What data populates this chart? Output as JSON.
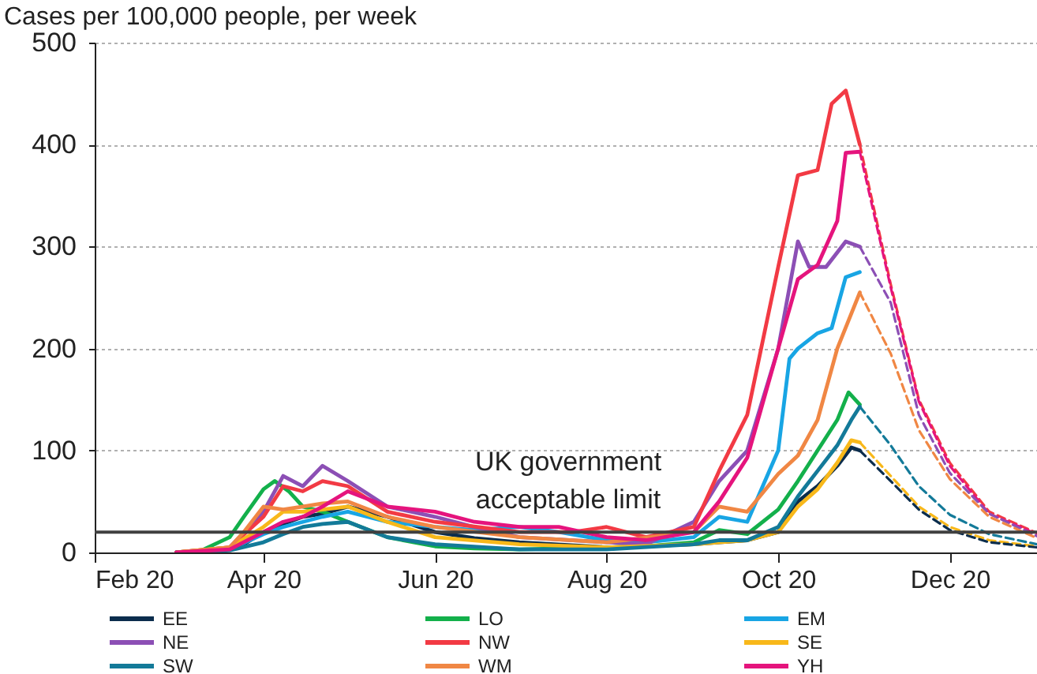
{
  "chart_data": {
    "type": "line",
    "ylabel": "Cases per 100,000 people, per week",
    "xlim": [
      "2020-02-01",
      "2021-01-01"
    ],
    "xticks": [
      {
        "value": "2020-02-01",
        "label": "Feb 20"
      },
      {
        "value": "2020-04-01",
        "label": "Apr 20"
      },
      {
        "value": "2020-06-01",
        "label": "Jun 20"
      },
      {
        "value": "2020-08-01",
        "label": "Aug 20"
      },
      {
        "value": "2020-10-01",
        "label": "Oct 20"
      },
      {
        "value": "2020-12-01",
        "label": "Dec 20"
      }
    ],
    "ylim": [
      0,
      500
    ],
    "yticks": [
      0,
      100,
      200,
      300,
      400,
      500
    ],
    "grid": "y",
    "legend": "bottom",
    "ref_lines": [
      {
        "axis": "y",
        "value": 20,
        "label": "UK government acceptable limit",
        "color": "#404040"
      }
    ],
    "series": [
      {
        "name": "EE",
        "color": "#0b2d4d",
        "x": [
          "2020-03-01",
          "2020-03-15",
          "2020-03-25",
          "2020-04-01",
          "2020-04-08",
          "2020-04-15",
          "2020-04-22",
          "2020-05-01",
          "2020-05-15",
          "2020-06-01",
          "2020-06-15",
          "2020-07-01",
          "2020-08-01",
          "2020-09-01",
          "2020-09-10",
          "2020-09-20",
          "2020-10-01",
          "2020-10-08",
          "2020-10-15",
          "2020-10-22",
          "2020-10-27",
          "2020-10-30"
        ],
        "values": [
          0,
          1,
          8,
          20,
          28,
          35,
          38,
          45,
          35,
          20,
          14,
          10,
          5,
          8,
          10,
          12,
          20,
          50,
          65,
          85,
          103,
          100
        ]
      },
      {
        "name": "LO",
        "color": "#13b04b",
        "x": [
          "2020-03-01",
          "2020-03-10",
          "2020-03-20",
          "2020-03-25",
          "2020-04-01",
          "2020-04-05",
          "2020-04-10",
          "2020-04-15",
          "2020-04-22",
          "2020-05-01",
          "2020-05-15",
          "2020-06-01",
          "2020-06-15",
          "2020-07-01",
          "2020-08-01",
          "2020-08-15",
          "2020-09-01",
          "2020-09-10",
          "2020-09-20",
          "2020-10-01",
          "2020-10-08",
          "2020-10-15",
          "2020-10-22",
          "2020-10-26",
          "2020-10-30"
        ],
        "values": [
          0,
          2,
          15,
          35,
          62,
          70,
          60,
          45,
          40,
          30,
          15,
          6,
          4,
          3,
          5,
          6,
          10,
          22,
          18,
          42,
          70,
          100,
          130,
          157,
          145
        ]
      },
      {
        "name": "EM",
        "color": "#18a5e4",
        "x": [
          "2020-03-01",
          "2020-03-20",
          "2020-04-01",
          "2020-04-08",
          "2020-04-15",
          "2020-04-22",
          "2020-05-01",
          "2020-05-15",
          "2020-06-01",
          "2020-06-15",
          "2020-07-01",
          "2020-07-15",
          "2020-08-01",
          "2020-08-15",
          "2020-09-01",
          "2020-09-10",
          "2020-09-20",
          "2020-10-01",
          "2020-10-05",
          "2020-10-08",
          "2020-10-15",
          "2020-10-20",
          "2020-10-25",
          "2020-10-30"
        ],
        "values": [
          0,
          3,
          18,
          25,
          30,
          35,
          40,
          30,
          25,
          22,
          25,
          20,
          12,
          10,
          15,
          35,
          30,
          100,
          190,
          200,
          215,
          220,
          270,
          275
        ]
      },
      {
        "name": "NE",
        "color": "#8c4fb5",
        "x": [
          "2020-03-01",
          "2020-03-20",
          "2020-04-01",
          "2020-04-08",
          "2020-04-15",
          "2020-04-22",
          "2020-05-01",
          "2020-05-15",
          "2020-06-01",
          "2020-06-15",
          "2020-07-01",
          "2020-08-01",
          "2020-08-15",
          "2020-09-01",
          "2020-09-10",
          "2020-09-20",
          "2020-10-01",
          "2020-10-08",
          "2020-10-12",
          "2020-10-18",
          "2020-10-25",
          "2020-10-30"
        ],
        "values": [
          0,
          5,
          40,
          75,
          65,
          85,
          70,
          45,
          35,
          25,
          15,
          10,
          8,
          30,
          70,
          100,
          200,
          305,
          280,
          280,
          305,
          300
        ]
      },
      {
        "name": "NW",
        "color": "#f23a44",
        "x": [
          "2020-03-01",
          "2020-03-20",
          "2020-04-01",
          "2020-04-08",
          "2020-04-15",
          "2020-04-22",
          "2020-05-01",
          "2020-05-15",
          "2020-06-01",
          "2020-07-01",
          "2020-07-20",
          "2020-08-01",
          "2020-08-15",
          "2020-09-01",
          "2020-09-10",
          "2020-09-20",
          "2020-10-01",
          "2020-10-08",
          "2020-10-15",
          "2020-10-20",
          "2020-10-25",
          "2020-10-30"
        ],
        "values": [
          0,
          5,
          35,
          65,
          60,
          70,
          65,
          40,
          30,
          20,
          20,
          25,
          15,
          25,
          80,
          135,
          280,
          370,
          375,
          440,
          453,
          400
        ]
      },
      {
        "name": "SE",
        "color": "#f8b81a",
        "x": [
          "2020-03-01",
          "2020-03-20",
          "2020-04-01",
          "2020-04-08",
          "2020-04-15",
          "2020-04-22",
          "2020-05-01",
          "2020-05-15",
          "2020-06-01",
          "2020-07-01",
          "2020-08-01",
          "2020-09-01",
          "2020-09-10",
          "2020-09-20",
          "2020-10-01",
          "2020-10-08",
          "2020-10-15",
          "2020-10-22",
          "2020-10-27",
          "2020-10-30"
        ],
        "values": [
          0,
          5,
          25,
          40,
          40,
          42,
          45,
          30,
          15,
          8,
          5,
          8,
          10,
          12,
          20,
          45,
          62,
          88,
          110,
          108
        ]
      },
      {
        "name": "SW",
        "color": "#137a99",
        "x": [
          "2020-03-01",
          "2020-03-20",
          "2020-04-01",
          "2020-04-08",
          "2020-04-15",
          "2020-04-22",
          "2020-05-01",
          "2020-05-15",
          "2020-06-01",
          "2020-07-01",
          "2020-08-01",
          "2020-09-01",
          "2020-09-10",
          "2020-09-20",
          "2020-10-01",
          "2020-10-08",
          "2020-10-15",
          "2020-10-22",
          "2020-10-27",
          "2020-10-30"
        ],
        "values": [
          0,
          2,
          10,
          18,
          25,
          28,
          30,
          15,
          8,
          3,
          3,
          8,
          12,
          12,
          25,
          55,
          80,
          105,
          130,
          143
        ]
      },
      {
        "name": "WM",
        "color": "#f08744",
        "x": [
          "2020-03-01",
          "2020-03-20",
          "2020-03-25",
          "2020-04-01",
          "2020-04-08",
          "2020-04-15",
          "2020-04-22",
          "2020-05-01",
          "2020-05-15",
          "2020-06-01",
          "2020-07-01",
          "2020-08-01",
          "2020-09-01",
          "2020-09-10",
          "2020-09-20",
          "2020-10-01",
          "2020-10-08",
          "2020-10-15",
          "2020-10-22",
          "2020-10-30"
        ],
        "values": [
          0,
          5,
          20,
          45,
          42,
          45,
          48,
          50,
          35,
          25,
          15,
          10,
          20,
          45,
          40,
          77,
          95,
          130,
          200,
          255
        ]
      },
      {
        "name": "YH",
        "color": "#e5147d",
        "x": [
          "2020-03-01",
          "2020-03-20",
          "2020-04-01",
          "2020-04-08",
          "2020-04-15",
          "2020-04-22",
          "2020-05-01",
          "2020-05-15",
          "2020-06-01",
          "2020-06-15",
          "2020-07-01",
          "2020-07-15",
          "2020-08-01",
          "2020-08-15",
          "2020-09-01",
          "2020-09-10",
          "2020-09-20",
          "2020-10-01",
          "2020-10-08",
          "2020-10-15",
          "2020-10-22",
          "2020-10-25",
          "2020-10-30"
        ],
        "values": [
          0,
          3,
          20,
          30,
          35,
          45,
          60,
          45,
          40,
          30,
          25,
          25,
          15,
          12,
          20,
          50,
          93,
          200,
          268,
          282,
          325,
          392,
          393
        ]
      },
      {
        "color": "#f23a44",
        "line_style": "dashed",
        "x": [
          "2020-10-30",
          "2020-11-10",
          "2020-11-20",
          "2020-12-01",
          "2020-12-15",
          "2021-01-01"
        ],
        "values": [
          400,
          263,
          150,
          88,
          40,
          19
        ]
      },
      {
        "color": "#e5147d",
        "line_style": "dashed",
        "x": [
          "2020-10-30",
          "2020-11-10",
          "2020-11-20",
          "2020-12-01",
          "2020-12-15",
          "2021-01-01"
        ],
        "values": [
          393,
          260,
          148,
          85,
          38,
          18
        ]
      },
      {
        "color": "#8c4fb5",
        "line_style": "dashed",
        "x": [
          "2020-10-30",
          "2020-11-10",
          "2020-11-20",
          "2020-12-01",
          "2020-12-15",
          "2021-01-01"
        ],
        "values": [
          300,
          245,
          135,
          78,
          38,
          16
        ]
      },
      {
        "color": "#f08744",
        "line_style": "dashed",
        "x": [
          "2020-10-30",
          "2020-11-10",
          "2020-11-20",
          "2020-12-01",
          "2020-12-15",
          "2021-01-01"
        ],
        "values": [
          255,
          195,
          120,
          72,
          35,
          14
        ]
      },
      {
        "color": "#137a99",
        "line_style": "dashed",
        "x": [
          "2020-10-30",
          "2020-11-10",
          "2020-11-20",
          "2020-12-01",
          "2020-12-15",
          "2021-01-01"
        ],
        "values": [
          143,
          105,
          65,
          37,
          18,
          8
        ]
      },
      {
        "color": "#f8b81a",
        "line_style": "dashed",
        "x": [
          "2020-10-30",
          "2020-11-10",
          "2020-11-20",
          "2020-12-01",
          "2020-12-15",
          "2021-01-01"
        ],
        "values": [
          108,
          75,
          45,
          25,
          12,
          6
        ]
      },
      {
        "color": "#0b2d4d",
        "line_style": "dashed",
        "x": [
          "2020-10-30",
          "2020-11-10",
          "2020-11-20",
          "2020-12-01",
          "2020-12-15",
          "2021-01-01"
        ],
        "values": [
          100,
          70,
          42,
          22,
          10,
          5
        ]
      }
    ]
  }
}
